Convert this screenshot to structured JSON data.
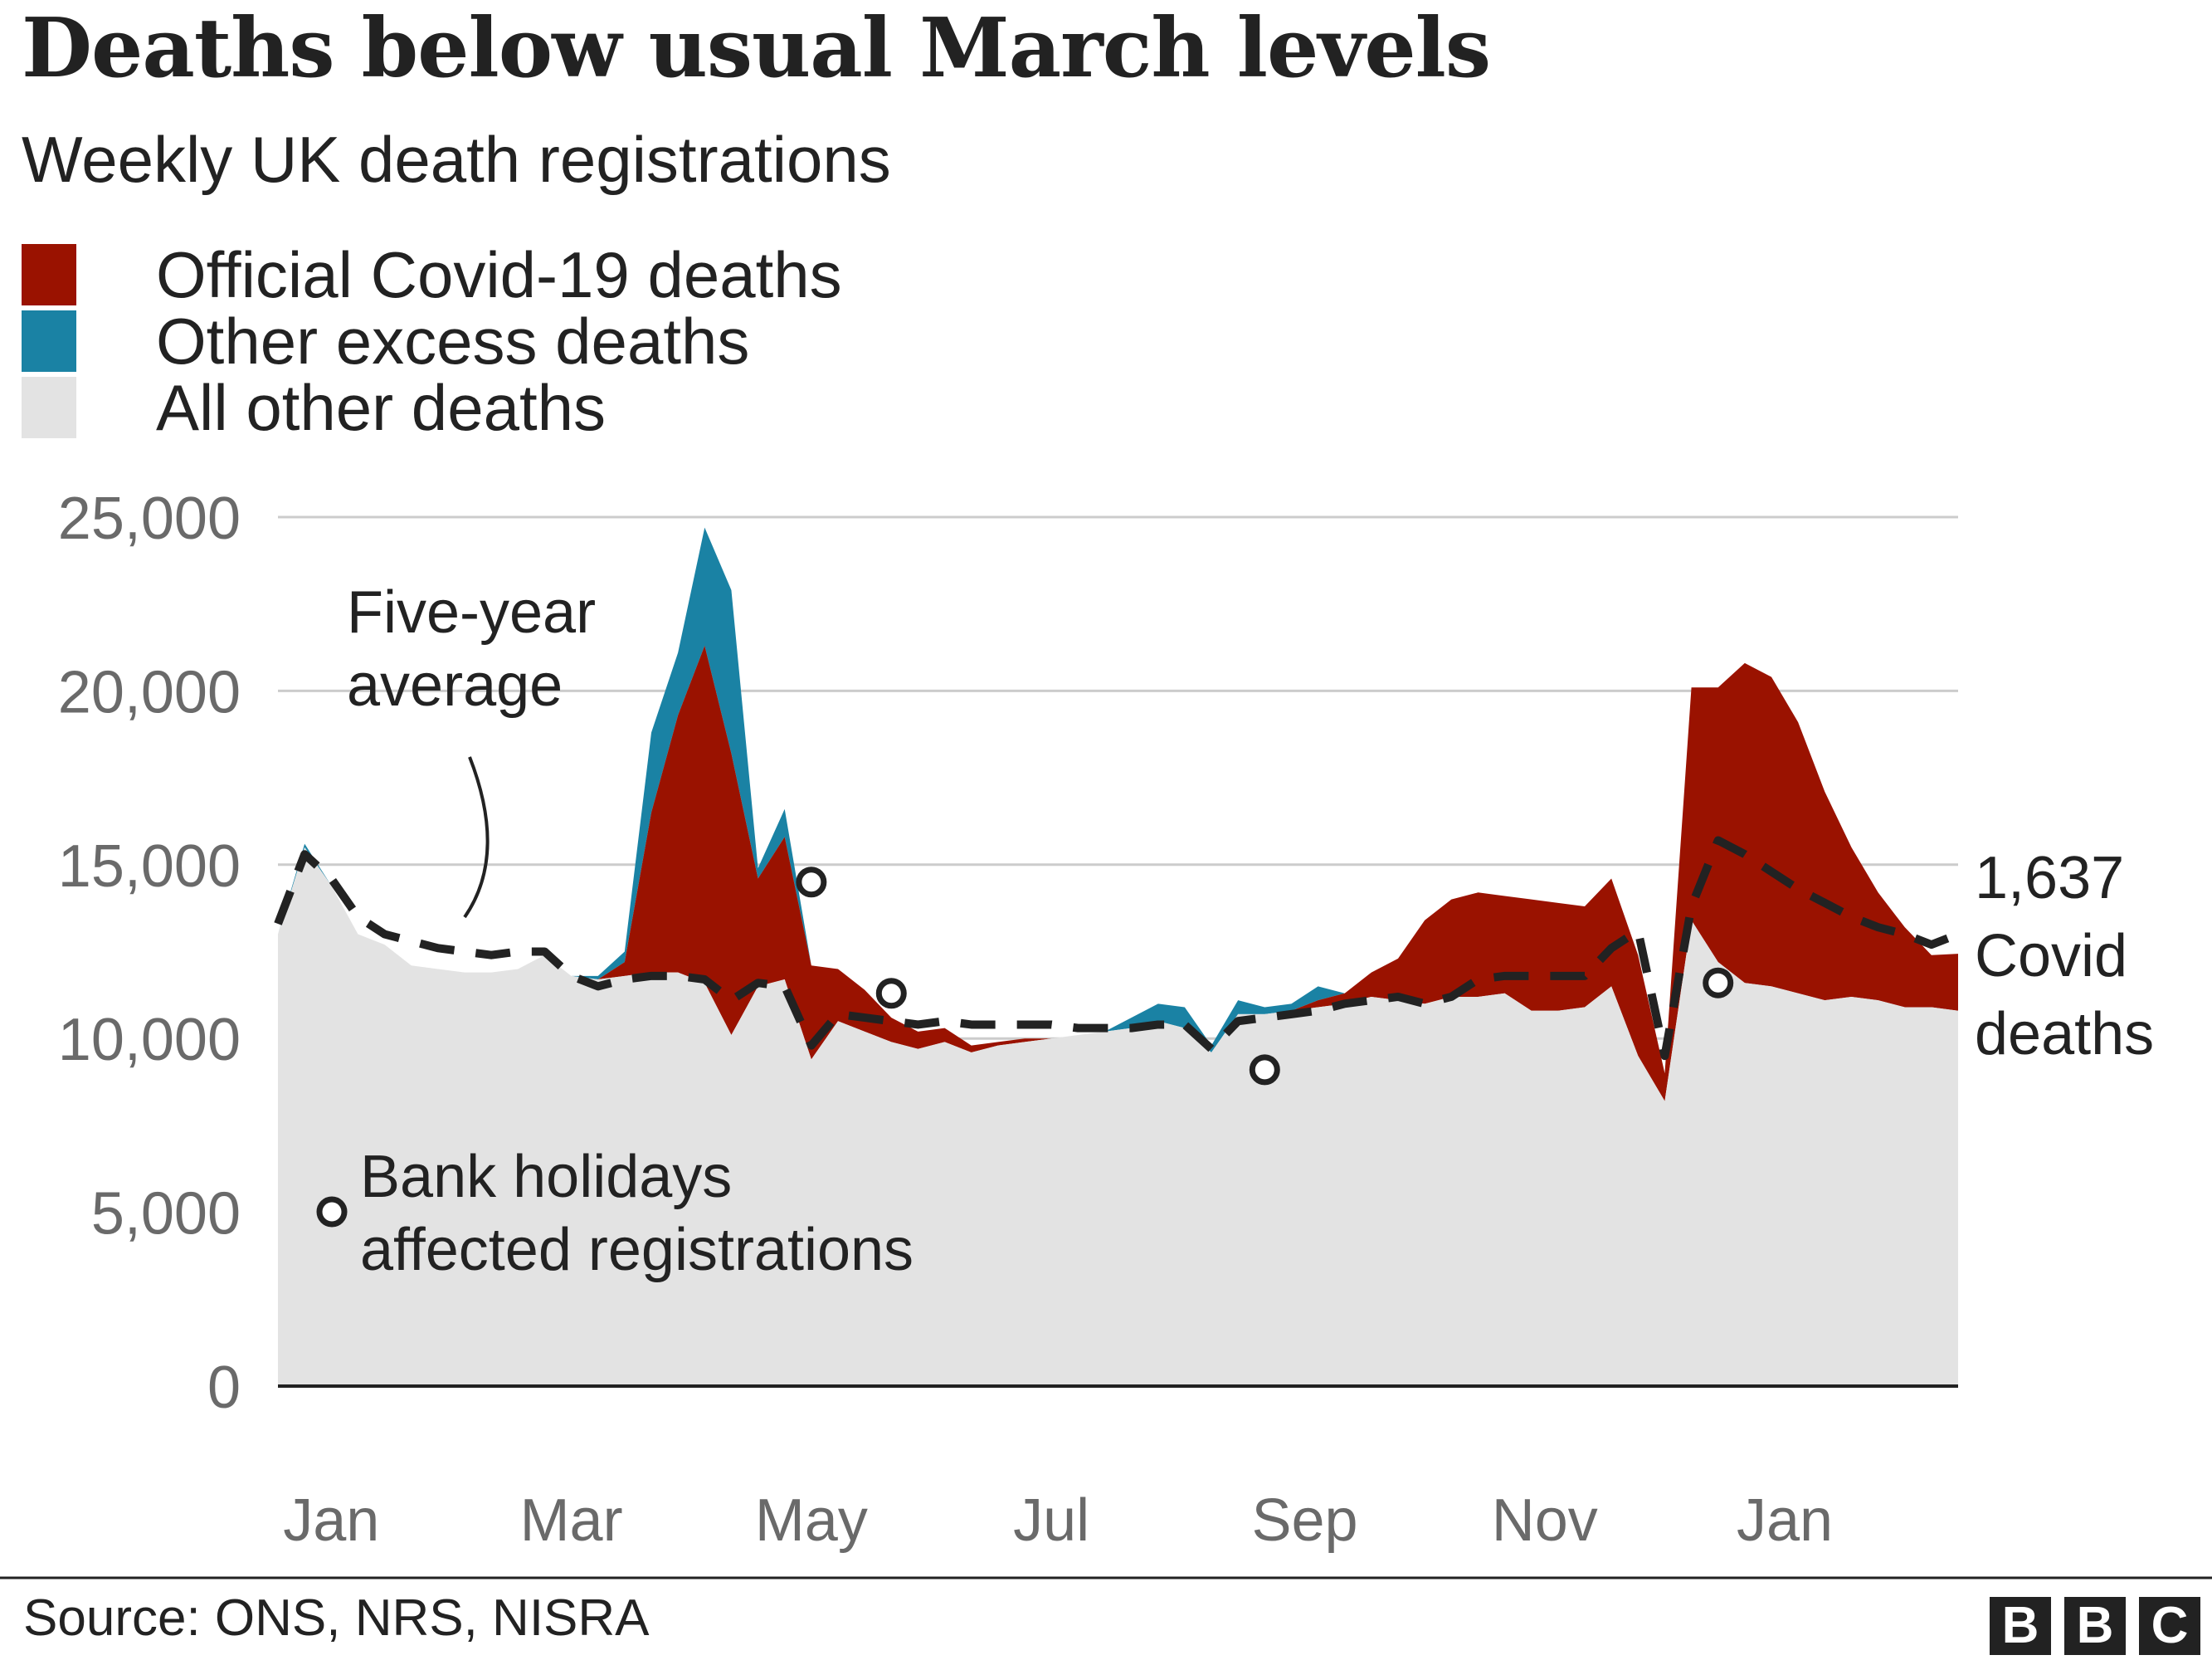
{
  "header": {
    "title": "Deaths below usual March levels",
    "subtitle": "Weekly UK death registrations"
  },
  "legend": {
    "items": [
      {
        "label": "Official Covid-19 deaths",
        "color": "#9a1200"
      },
      {
        "label": "Other excess deaths",
        "color": "#1a82a4"
      },
      {
        "label": "All other deaths",
        "color": "#e3e3e3"
      }
    ]
  },
  "annotations": {
    "five_year_average": [
      "Five-year",
      "average"
    ],
    "bank_holidays": [
      "Bank holidays",
      "affected registrations"
    ],
    "covid_callout": [
      "1,637",
      "Covid",
      "deaths"
    ]
  },
  "footer": {
    "source": "Source: ONS, NRS, NISRA",
    "logo": [
      "B",
      "B",
      "C"
    ]
  },
  "chart_data": {
    "type": "area",
    "stacked": true,
    "x_unit": "week",
    "week_start": 1,
    "week_end": 64,
    "ylim": [
      0,
      25000
    ],
    "yticks": [
      0,
      5000,
      10000,
      15000,
      20000,
      25000
    ],
    "ytick_labels": [
      "0",
      "5,000",
      "10,000",
      "15,000",
      "20,000",
      "25,000"
    ],
    "grid": true,
    "xlabel": "",
    "ylabel": "",
    "xticks": [
      {
        "label": "Jan",
        "week": 3
      },
      {
        "label": "Mar",
        "week": 12
      },
      {
        "label": "May",
        "week": 21
      },
      {
        "label": "Jul",
        "week": 30
      },
      {
        "label": "Sep",
        "week": 39.5
      },
      {
        "label": "Nov",
        "week": 48.5
      },
      {
        "label": "Jan",
        "week": 57.5
      }
    ],
    "series": [
      {
        "name": "All other deaths",
        "color": "#e3e3e3",
        "values": [
          13000,
          15500,
          14400,
          13000,
          12700,
          12100,
          12000,
          11900,
          11900,
          12000,
          12400,
          11800,
          11700,
          11800,
          11900,
          11900,
          11600,
          10100,
          11500,
          11700,
          9400,
          10500,
          10200,
          9900,
          9700,
          9900,
          9600,
          9800,
          9900,
          10000,
          10100,
          10200,
          10300,
          10500,
          10300,
          9600,
          10700,
          10700,
          10800,
          10900,
          11000,
          11200,
          11100,
          11000,
          11200,
          11200,
          11300,
          10800,
          10800,
          10900,
          11500,
          9500,
          8200,
          13400,
          12200,
          11600,
          11500,
          11300,
          11100,
          11200,
          11100,
          10900,
          10900,
          10800
        ]
      },
      {
        "name": "Official Covid-19 deaths",
        "color": "#9a1200",
        "values": [
          0,
          0,
          0,
          0,
          0,
          0,
          0,
          0,
          0,
          0,
          0,
          0,
          0,
          400,
          4600,
          7400,
          9700,
          8100,
          3100,
          4100,
          2700,
          1500,
          1200,
          700,
          500,
          400,
          200,
          100,
          100,
          0,
          0,
          0,
          0,
          0,
          0,
          0,
          0,
          0,
          0,
          200,
          300,
          700,
          1200,
          2400,
          2800,
          3000,
          2800,
          3200,
          3100,
          2900,
          3100,
          2900,
          800,
          6700,
          7900,
          9200,
          8900,
          7800,
          6000,
          4300,
          3100,
          2300,
          1500,
          1637
        ]
      },
      {
        "name": "Other excess deaths",
        "color": "#1a82a4",
        "values": [
          0,
          100,
          0,
          0,
          0,
          0,
          0,
          0,
          0,
          0,
          0,
          0,
          100,
          300,
          2300,
          1800,
          3400,
          4700,
          300,
          800,
          0,
          0,
          0,
          0,
          0,
          0,
          0,
          0,
          0,
          0,
          0,
          0,
          300,
          500,
          600,
          200,
          400,
          200,
          200,
          400,
          0,
          0,
          0,
          0,
          0,
          0,
          0,
          0,
          0,
          0,
          0,
          0,
          0,
          0,
          0,
          0,
          0,
          0,
          0,
          0,
          0,
          0,
          0,
          0
        ]
      },
      {
        "name": "Five-year average",
        "type": "line",
        "color": "#222222",
        "values": [
          13300,
          15300,
          14600,
          13500,
          13000,
          12800,
          12600,
          12500,
          12400,
          12500,
          12500,
          11800,
          11500,
          11700,
          11800,
          11800,
          11700,
          11100,
          11600,
          11500,
          9800,
          10700,
          10600,
          10500,
          10400,
          10500,
          10400,
          10400,
          10400,
          10400,
          10300,
          10300,
          10300,
          10400,
          10400,
          9700,
          10500,
          10600,
          10700,
          10800,
          11000,
          11100,
          11200,
          11000,
          11200,
          11700,
          11800,
          11800,
          11800,
          11800,
          12600,
          13100,
          9500,
          13800,
          15700,
          15300,
          14800,
          14300,
          13900,
          13500,
          13200,
          13000,
          12700,
          13000
        ]
      }
    ],
    "bank_holiday_points": [
      {
        "week": 21,
        "value": 14500
      },
      {
        "week": 24,
        "value": 11300
      },
      {
        "week": 38,
        "value": 9100
      },
      {
        "week": 55,
        "value": 11600
      }
    ]
  }
}
